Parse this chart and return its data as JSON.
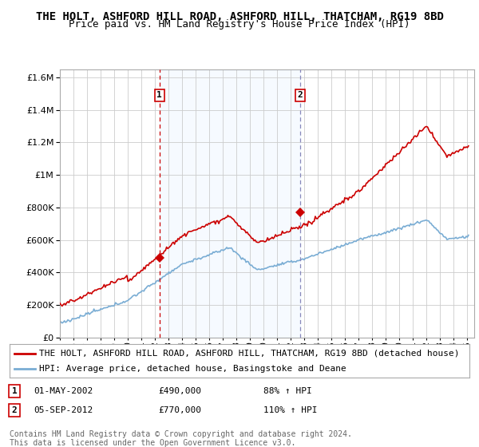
{
  "title": "THE HOLT, ASHFORD HILL ROAD, ASHFORD HILL, THATCHAM, RG19 8BD",
  "subtitle": "Price paid vs. HM Land Registry's House Price Index (HPI)",
  "ytick_values": [
    0,
    200000,
    400000,
    600000,
    800000,
    1000000,
    1200000,
    1400000,
    1600000
  ],
  "ylim": [
    0,
    1650000
  ],
  "xlim_start": 1995.0,
  "xlim_end": 2025.5,
  "sale1_x": 2002.33,
  "sale1_y": 490000,
  "sale2_x": 2012.67,
  "sale2_y": 770000,
  "sale1_date": "01-MAY-2002",
  "sale1_price": "£490,000",
  "sale1_pct": "88% ↑ HPI",
  "sale2_date": "05-SEP-2012",
  "sale2_price": "£770,000",
  "sale2_pct": "110% ↑ HPI",
  "legend_red": "THE HOLT, ASHFORD HILL ROAD, ASHFORD HILL, THATCHAM, RG19 8BD (detached house)",
  "legend_blue": "HPI: Average price, detached house, Basingstoke and Deane",
  "footer": "Contains HM Land Registry data © Crown copyright and database right 2024.\nThis data is licensed under the Open Government Licence v3.0.",
  "red_color": "#cc0000",
  "blue_color": "#7aadd4",
  "shade_color": "#ddeeff",
  "background_color": "#ffffff",
  "grid_color": "#cccccc",
  "box_color": "#cc0000",
  "title_fontsize": 10,
  "subtitle_fontsize": 9,
  "tick_fontsize": 8,
  "legend_fontsize": 8,
  "footer_fontsize": 7
}
